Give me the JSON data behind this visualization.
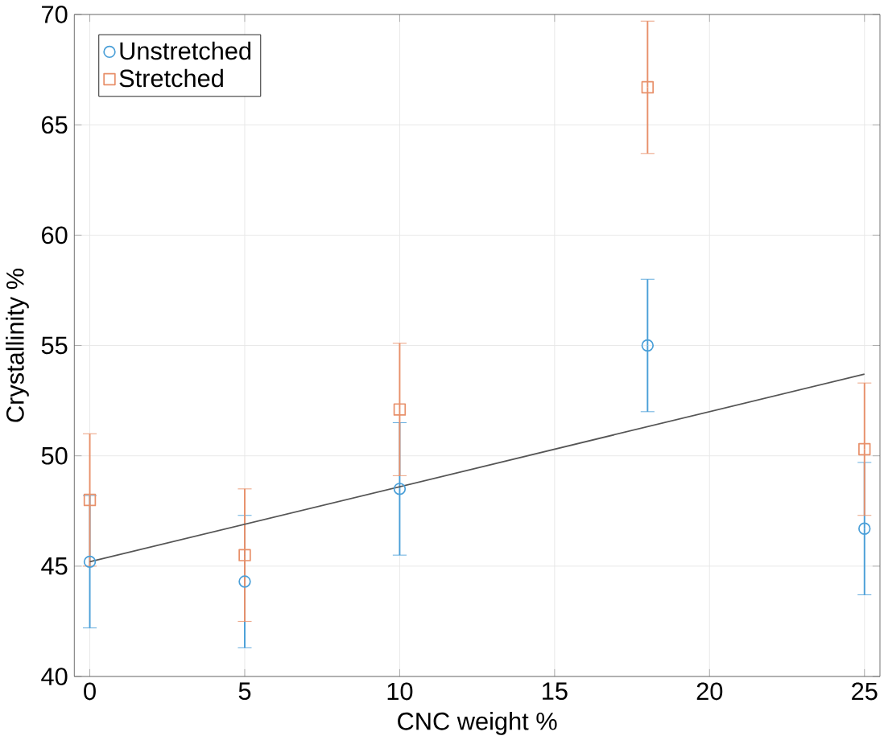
{
  "chart_data": {
    "type": "scatter",
    "xlabel": "CNC weight %",
    "ylabel": "Crystallinity %",
    "xlim": [
      -0.5,
      25.5
    ],
    "ylim": [
      40,
      70
    ],
    "xticks": [
      0,
      5,
      10,
      15,
      20,
      25
    ],
    "yticks": [
      40,
      45,
      50,
      55,
      60,
      65,
      70
    ],
    "grid": true,
    "legend": "top left",
    "series": [
      {
        "name": "Unstretched",
        "color": "#4a9fd8",
        "marker": "circle",
        "x": [
          0,
          5,
          10,
          18,
          25
        ],
        "values": [
          45.2,
          44.3,
          48.5,
          55.0,
          46.7
        ],
        "errors": [
          3,
          3,
          3,
          3,
          3
        ]
      },
      {
        "name": "Stretched",
        "color": "#e8906a",
        "marker": "square",
        "x": [
          0,
          5,
          10,
          18,
          25
        ],
        "values": [
          48.0,
          45.5,
          52.1,
          66.7,
          50.3
        ],
        "errors": [
          3,
          3,
          3,
          3,
          3
        ]
      },
      {
        "type": "line",
        "color": "#555555",
        "marker": "none",
        "x": [
          0,
          25
        ],
        "values": [
          45.2,
          53.7
        ]
      }
    ]
  }
}
